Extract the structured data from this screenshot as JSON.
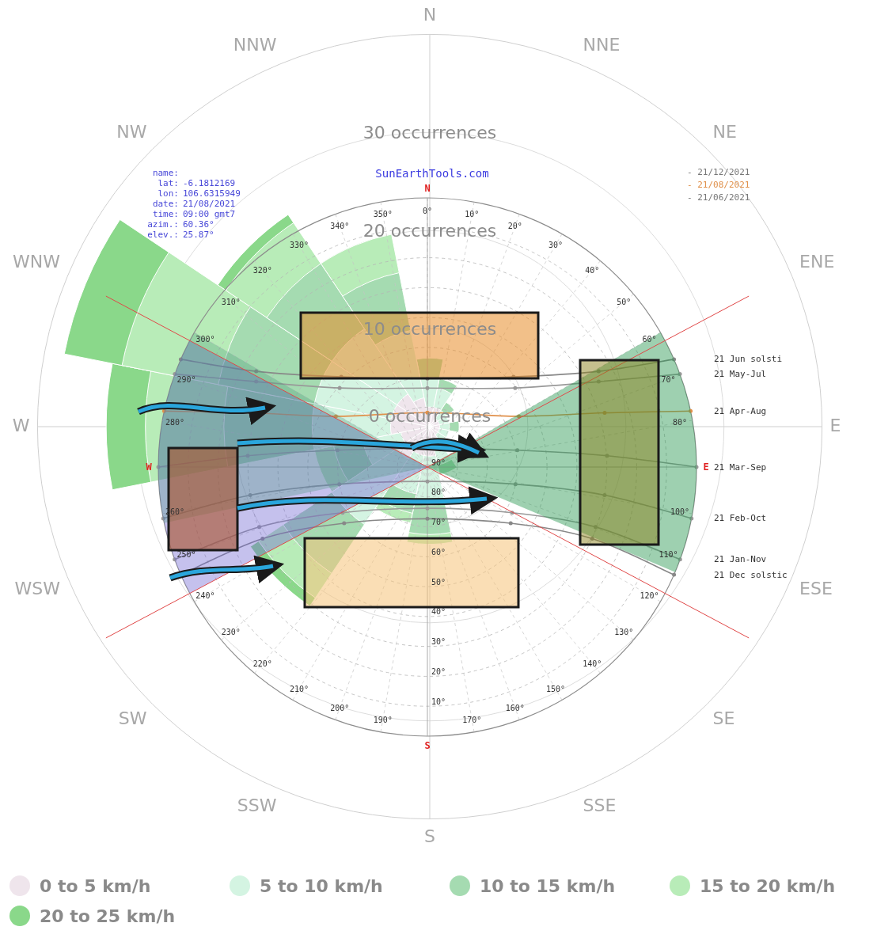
{
  "chart_data": {
    "type": "polarArea",
    "categories": [
      "N",
      "NNE",
      "NE",
      "ENE",
      "E",
      "ESE",
      "SE",
      "SSE",
      "S",
      "SSW",
      "SW",
      "WSW",
      "W",
      "WNW",
      "NW",
      "NNW"
    ],
    "series": [
      {
        "name": "0 to 5 km/h",
        "color": "#efe5ec",
        "values": [
          2,
          2,
          1,
          1,
          1,
          1,
          1,
          2,
          3,
          3,
          4,
          3,
          4,
          4,
          4,
          3
        ]
      },
      {
        "name": "5 to 10 km/h",
        "color": "#d4f4e2",
        "values": [
          3,
          2,
          1,
          1,
          1,
          1,
          1,
          2,
          5,
          4,
          8,
          4,
          8,
          8,
          8,
          7
        ]
      },
      {
        "name": "10 to 15 km/h",
        "color": "#a5dbb1",
        "values": [
          2,
          1,
          1,
          0,
          1,
          0,
          0,
          1,
          3,
          2,
          6,
          3,
          9,
          10,
          8,
          6
        ]
      },
      {
        "name": "15 to 20 km/h",
        "color": "#b8ecb8",
        "values": [
          0,
          0,
          0,
          0,
          0,
          0,
          0,
          0,
          1,
          1,
          3,
          2,
          8,
          10,
          5,
          4
        ]
      },
      {
        "name": "20 to 25 km/h",
        "color": "#8ad88a",
        "values": [
          0,
          0,
          0,
          0,
          0,
          0,
          0,
          0,
          0,
          0,
          1,
          0,
          4,
          6,
          1,
          0
        ]
      }
    ],
    "ylim": [
      0,
      40
    ],
    "yticks": [
      {
        "value": 0,
        "label": "0 occurrences"
      },
      {
        "value": 10,
        "label": "10 occurrences"
      },
      {
        "value": 20,
        "label": "20 occurrences"
      },
      {
        "value": 30,
        "label": "30 occurrences"
      }
    ],
    "grid": true,
    "legend": "bottom"
  },
  "site": "SunEarthTools.com",
  "info": [
    "name:",
    "lat: -6.1812169",
    "lon: 106.6315949",
    "date: 21/08/2021",
    "time: 09:00 gmt7",
    "azim.: 60.36°",
    "elev.: 25.87°"
  ],
  "date_legend": [
    {
      "label": "- 21/12/2021",
      "color": "#777777"
    },
    {
      "label": "- 21/08/2021",
      "color": "#e0904a"
    },
    {
      "label": "- 21/06/2021",
      "color": "#777777"
    }
  ],
  "sun_chart": {
    "compass": [
      {
        "value": 0,
        "label": "N"
      },
      {
        "value": 90,
        "label": "E"
      },
      {
        "value": 180,
        "label": "S"
      },
      {
        "value": 270,
        "label": "W"
      }
    ],
    "azimuth_ticks": [
      {
        "value": 0,
        "label": "0°"
      },
      {
        "value": 10,
        "label": "10°"
      },
      {
        "value": 20,
        "label": "20°"
      },
      {
        "value": 30,
        "label": "30°"
      },
      {
        "value": 40,
        "label": "40°"
      },
      {
        "value": 50,
        "label": "50°"
      },
      {
        "value": 60,
        "label": "60°"
      },
      {
        "value": 70,
        "label": "70°"
      },
      {
        "value": 80,
        "label": "80°"
      },
      {
        "value": 100,
        "label": "100°"
      },
      {
        "value": 110,
        "label": "110°"
      },
      {
        "value": 120,
        "label": "120°"
      },
      {
        "value": 130,
        "label": "130°"
      },
      {
        "value": 140,
        "label": "140°"
      },
      {
        "value": 150,
        "label": "150°"
      },
      {
        "value": 160,
        "label": "160°"
      },
      {
        "value": 170,
        "label": "170°"
      },
      {
        "value": 190,
        "label": "190°"
      },
      {
        "value": 200,
        "label": "200°"
      },
      {
        "value": 210,
        "label": "210°"
      },
      {
        "value": 220,
        "label": "220°"
      },
      {
        "value": 230,
        "label": "230°"
      },
      {
        "value": 240,
        "label": "240°"
      },
      {
        "value": 250,
        "label": "250°"
      },
      {
        "value": 260,
        "label": "260°"
      },
      {
        "value": 280,
        "label": "280°"
      },
      {
        "value": 290,
        "label": "290°"
      },
      {
        "value": 300,
        "label": "300°"
      },
      {
        "value": 310,
        "label": "310°"
      },
      {
        "value": 320,
        "label": "320°"
      },
      {
        "value": 330,
        "label": "330°"
      },
      {
        "value": 340,
        "label": "340°"
      },
      {
        "value": 350,
        "label": "350°"
      }
    ],
    "elevation_ticks": [
      {
        "value": 10,
        "label": "10°"
      },
      {
        "value": 20,
        "label": "20°"
      },
      {
        "value": 30,
        "label": "30°"
      },
      {
        "value": 40,
        "label": "40°"
      },
      {
        "value": 50,
        "label": "50°"
      },
      {
        "value": 60,
        "label": "60°"
      },
      {
        "value": 70,
        "label": "70°"
      },
      {
        "value": 80,
        "label": "80°"
      },
      {
        "value": 90,
        "label": "90°"
      }
    ],
    "paths": [
      {
        "name": "21 Jun  solsti",
        "color": "#888888",
        "points": [
          [
            66.4,
            0
          ],
          [
            60.8,
            24.4
          ],
          [
            43.7,
            48.3
          ],
          [
            0,
            60.4
          ],
          [
            316.3,
            48.3
          ],
          [
            299.2,
            24.4
          ],
          [
            293.6,
            0
          ]
        ]
      },
      {
        "name": "21 May-Jul",
        "color": "#999999",
        "points": [
          [
            69.8,
            0
          ],
          [
            63.5,
            26
          ],
          [
            48,
            50.5
          ],
          [
            0,
            63.6
          ],
          [
            312,
            50.5
          ],
          [
            296.5,
            26
          ],
          [
            290.2,
            0
          ]
        ]
      },
      {
        "name": "21 Apr-Aug",
        "color": "#e0904a",
        "points": [
          [
            78,
            0
          ],
          [
            73,
            28
          ],
          [
            61,
            55
          ],
          [
            0,
            71.8
          ],
          [
            299,
            55
          ],
          [
            287,
            28
          ],
          [
            282,
            0
          ]
        ]
      },
      {
        "name": "21 Mar-Sep",
        "color": "#999999",
        "points": [
          [
            90,
            0
          ],
          [
            86.4,
            29.8
          ],
          [
            79.4,
            59.4
          ],
          [
            0,
            83.8
          ],
          [
            280.6,
            59.4
          ],
          [
            273.6,
            29.8
          ],
          [
            270,
            0
          ]
        ]
      },
      {
        "name": "21 Feb-Oct",
        "color": "#999999",
        "points": [
          [
            101,
            0
          ],
          [
            99,
            30
          ],
          [
            101,
            60
          ],
          [
            180,
            85.2
          ],
          [
            259,
            60
          ],
          [
            261,
            30
          ],
          [
            259,
            0
          ]
        ]
      },
      {
        "name": "21 Jan-Nov",
        "color": "#999999",
        "points": [
          [
            110.1,
            0
          ],
          [
            109.6,
            30.3
          ],
          [
            118.3,
            57.8
          ],
          [
            180,
            76.2
          ],
          [
            241.7,
            57.8
          ],
          [
            250.4,
            30.3
          ],
          [
            249.9,
            0
          ]
        ]
      },
      {
        "name": "21 Dec  solstic",
        "color": "#888888",
        "points": [
          [
            113.6,
            0
          ],
          [
            113.5,
            29.9
          ],
          [
            124,
            56.4
          ],
          [
            180,
            72.7
          ],
          [
            236,
            56.4
          ],
          [
            246.5,
            29.9
          ],
          [
            246.4,
            0
          ]
        ]
      }
    ]
  }
}
